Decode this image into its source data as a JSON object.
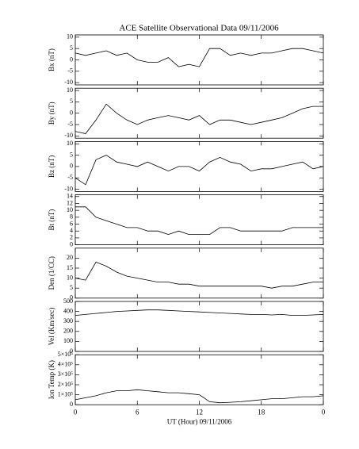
{
  "chart_data": [
    {
      "type": "line",
      "title": "ACE Satellite Observational Data   09/11/2006",
      "ylabel": "Bx (nT)",
      "x": [
        0,
        1,
        2,
        3,
        4,
        5,
        6,
        7,
        8,
        9,
        10,
        11,
        12,
        13,
        14,
        15,
        16,
        17,
        18,
        19,
        20,
        21,
        22,
        23,
        24
      ],
      "values": [
        3,
        2,
        3,
        4,
        2,
        3,
        0,
        -1,
        -1,
        1,
        -3,
        -2,
        -3,
        5,
        5,
        2,
        3,
        2,
        3,
        3,
        4,
        5,
        5,
        4,
        3
      ],
      "color": "#000000",
      "xlim": [
        0,
        24
      ],
      "xticks": [
        0,
        6,
        12,
        18,
        {
          "value": 24,
          "label": "0"
        }
      ],
      "ylim": [
        -11,
        11
      ],
      "yticks": [
        -10,
        -5,
        0,
        5,
        10
      ]
    },
    {
      "type": "line",
      "ylabel": "By (nT)",
      "x": [
        0,
        1,
        2,
        3,
        4,
        5,
        6,
        7,
        8,
        9,
        10,
        11,
        12,
        13,
        14,
        15,
        16,
        17,
        18,
        19,
        20,
        21,
        22,
        23,
        24
      ],
      "values": [
        -8,
        -9,
        -3,
        4,
        0,
        -3,
        -5,
        -3,
        -2,
        -1,
        -2,
        -3,
        -1,
        -5,
        -3,
        -3,
        -4,
        -5,
        -4,
        -3,
        -2,
        0,
        2,
        3,
        3
      ],
      "color": "#000000",
      "xlim": [
        0,
        24
      ],
      "xticks": [
        0,
        6,
        12,
        18,
        {
          "value": 24,
          "label": "0"
        }
      ],
      "ylim": [
        -11,
        11
      ],
      "yticks": [
        -10,
        -5,
        0,
        5,
        10
      ]
    },
    {
      "type": "line",
      "ylabel": "Bz (nT)",
      "x": [
        0,
        1,
        2,
        3,
        4,
        5,
        6,
        7,
        8,
        9,
        10,
        11,
        12,
        13,
        14,
        15,
        16,
        17,
        18,
        19,
        20,
        21,
        22,
        23,
        24
      ],
      "values": [
        -5,
        -8,
        3,
        5,
        2,
        1,
        0,
        2,
        0,
        -2,
        0,
        0,
        -2,
        2,
        4,
        2,
        1,
        -2,
        -1,
        -1,
        0,
        1,
        2,
        -1,
        0
      ],
      "color": "#000000",
      "xlim": [
        0,
        24
      ],
      "xticks": [
        0,
        6,
        12,
        18,
        {
          "value": 24,
          "label": "0"
        }
      ],
      "ylim": [
        -11,
        11
      ],
      "yticks": [
        -10,
        -5,
        0,
        5,
        10
      ]
    },
    {
      "type": "line",
      "ylabel": "Bt (nT)",
      "x": [
        0,
        1,
        2,
        3,
        4,
        5,
        6,
        7,
        8,
        9,
        10,
        11,
        12,
        13,
        14,
        15,
        16,
        17,
        18,
        19,
        20,
        21,
        22,
        23,
        24
      ],
      "values": [
        11,
        11,
        8,
        7,
        6,
        5,
        5,
        4,
        4,
        3,
        4,
        3,
        3,
        3,
        5,
        5,
        4,
        4,
        4,
        4,
        4,
        5,
        5,
        5,
        5
      ],
      "color": "#000000",
      "xlim": [
        0,
        24
      ],
      "xticks": [
        0,
        6,
        12,
        18,
        {
          "value": 24,
          "label": "0"
        }
      ],
      "ylim": [
        0,
        14.5
      ],
      "yticks": [
        0,
        2,
        4,
        6,
        8,
        10,
        12,
        14
      ]
    },
    {
      "type": "line",
      "ylabel": "Den (1/CC)",
      "x": [
        0,
        1,
        2,
        3,
        4,
        5,
        6,
        7,
        8,
        9,
        10,
        11,
        12,
        13,
        14,
        15,
        16,
        17,
        18,
        19,
        20,
        21,
        22,
        23,
        24
      ],
      "values": [
        10,
        9,
        18,
        16,
        13,
        11,
        10,
        9,
        8,
        8,
        7,
        7,
        6,
        6,
        6,
        6,
        6,
        6,
        6,
        5,
        6,
        6,
        7,
        8,
        8
      ],
      "color": "#000000",
      "xlim": [
        0,
        24
      ],
      "xticks": [
        0,
        6,
        12,
        18,
        {
          "value": 24,
          "label": "0"
        }
      ],
      "ylim": [
        0,
        25
      ],
      "yticks": [
        0,
        5,
        10,
        15,
        20
      ]
    },
    {
      "type": "line",
      "ylabel": "Vel (Km/sec)",
      "x": [
        0,
        1,
        2,
        3,
        4,
        5,
        6,
        7,
        8,
        9,
        10,
        11,
        12,
        13,
        14,
        15,
        16,
        17,
        18,
        19,
        20,
        21,
        22,
        23,
        24
      ],
      "values": [
        360,
        370,
        380,
        390,
        400,
        405,
        410,
        415,
        415,
        410,
        405,
        400,
        395,
        390,
        385,
        380,
        375,
        370,
        370,
        365,
        370,
        360,
        360,
        365,
        370
      ],
      "color": "#000000",
      "xlim": [
        0,
        24
      ],
      "xticks": [
        0,
        6,
        12,
        18,
        {
          "value": 24,
          "label": "0"
        }
      ],
      "ylim": [
        0,
        500
      ],
      "yticks": [
        0,
        100,
        200,
        300,
        400,
        500
      ]
    },
    {
      "type": "line",
      "ylabel": "Ion Temp (K)",
      "xlabel": "UT (Hour)   09/11/2006",
      "x": [
        0,
        1,
        2,
        3,
        4,
        5,
        6,
        7,
        8,
        9,
        10,
        11,
        12,
        13,
        14,
        15,
        16,
        17,
        18,
        19,
        20,
        21,
        22,
        23,
        24
      ],
      "values": [
        50000,
        70000,
        90000,
        120000,
        140000,
        140000,
        150000,
        140000,
        130000,
        120000,
        120000,
        110000,
        100000,
        30000,
        20000,
        25000,
        30000,
        40000,
        50000,
        60000,
        60000,
        70000,
        80000,
        80000,
        90000
      ],
      "color": "#000000",
      "xlim": [
        0,
        24
      ],
      "xticks": [
        0,
        6,
        12,
        18,
        {
          "value": 24,
          "label": "0"
        }
      ],
      "ylim": [
        0,
        500000
      ],
      "yticks": [
        0,
        {
          "value": 100000,
          "label": "1×10⁵"
        },
        {
          "value": 200000,
          "label": "2×10⁵"
        },
        {
          "value": 300000,
          "label": "3×10⁵"
        },
        {
          "value": 400000,
          "label": "4×10⁵"
        },
        {
          "value": 500000,
          "label": "5×10⁵"
        }
      ]
    }
  ]
}
